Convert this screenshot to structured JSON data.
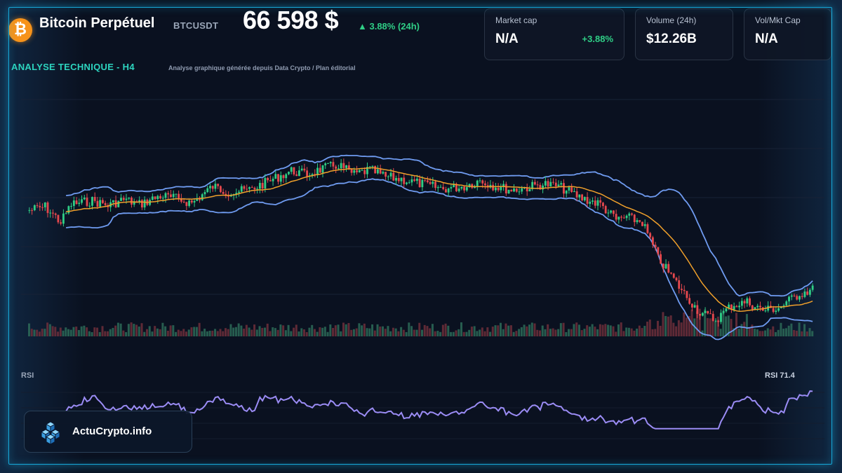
{
  "header": {
    "logo_glyph": "₿",
    "asset_name": "Bitcoin Perpétuel",
    "ticker": "BTCUSDT",
    "price": "66 598 $",
    "change_24h": "▲ 3.88% (24h)"
  },
  "stats": [
    {
      "label": "Market cap",
      "value": "N/A",
      "sub": "+3.88%"
    },
    {
      "label": "Volume (24h)",
      "value": "$12.26B",
      "sub": ""
    },
    {
      "label": "Vol/Mkt Cap",
      "value": "N/A",
      "sub": ""
    }
  ],
  "section": {
    "title": "ANALYSE TECHNIQUE - H4",
    "subtitle": "Analyse graphique générée depuis Data Crypto / Plan éditorial"
  },
  "rsi": {
    "label": "RSI",
    "value_label": "RSI 71.4"
  },
  "brand": {
    "name": "ActuCrypto.info",
    "icon": "cubes-icon"
  },
  "colors": {
    "accent": "#17a8d8",
    "up": "#2fce86",
    "down": "#e5484d",
    "bollinger": "#6f9bf0",
    "ma": "#f0a02b",
    "rsi": "#9b8cf5",
    "btc": "#f7931a"
  },
  "chart_data": {
    "type": "candlestick",
    "title": "ANALYSE TECHNIQUE - H4",
    "series": [
      "price",
      "MA",
      "Bollinger upper",
      "Bollinger lower",
      "volume",
      "RSI"
    ],
    "price_path": [
      [
        0,
        0.0
      ],
      [
        6,
        0.03
      ],
      [
        12,
        -0.1
      ],
      [
        16,
        0.05
      ],
      [
        24,
        0.08
      ],
      [
        30,
        0.04
      ],
      [
        36,
        0.09
      ],
      [
        42,
        0.05
      ],
      [
        50,
        0.12
      ],
      [
        56,
        0.1
      ],
      [
        62,
        0.06
      ],
      [
        70,
        0.2
      ],
      [
        76,
        0.15
      ],
      [
        84,
        0.17
      ],
      [
        92,
        0.25
      ],
      [
        100,
        0.33
      ],
      [
        106,
        0.3
      ],
      [
        112,
        0.35
      ],
      [
        118,
        0.38
      ],
      [
        124,
        0.3
      ],
      [
        130,
        0.34
      ],
      [
        136,
        0.28
      ],
      [
        142,
        0.26
      ],
      [
        150,
        0.22
      ],
      [
        158,
        0.18
      ],
      [
        166,
        0.2
      ],
      [
        172,
        0.25
      ],
      [
        178,
        0.2
      ],
      [
        184,
        0.17
      ],
      [
        190,
        0.19
      ],
      [
        196,
        0.22
      ],
      [
        202,
        0.2
      ],
      [
        210,
        0.11
      ],
      [
        218,
        0.05
      ],
      [
        224,
        -0.08
      ],
      [
        228,
        -0.06
      ],
      [
        234,
        -0.1
      ],
      [
        240,
        -0.4
      ],
      [
        250,
        -0.7
      ],
      [
        256,
        -0.86
      ],
      [
        262,
        -0.92
      ],
      [
        268,
        -0.8
      ],
      [
        274,
        -0.77
      ],
      [
        280,
        -0.84
      ],
      [
        286,
        -0.82
      ],
      [
        294,
        -0.7
      ],
      [
        300,
        -0.66
      ]
    ],
    "candles": 300,
    "rsi_last": 71.4,
    "legend": "none",
    "grid": true
  }
}
